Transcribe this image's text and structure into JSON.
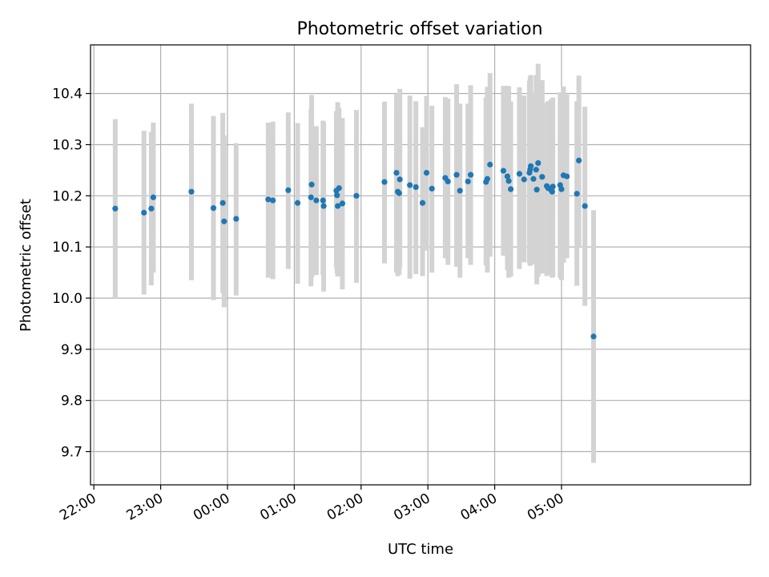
{
  "chart_data": {
    "type": "scatter",
    "title": "Photometric offset variation",
    "xlabel": "UTC time",
    "ylabel": "Photometric offset",
    "xlim_hours": [
      -2.05,
      7.83
    ],
    "ylim": [
      9.635,
      10.495
    ],
    "x_ticks": [
      {
        "hour": -2,
        "label": "22:00"
      },
      {
        "hour": -1,
        "label": "23:00"
      },
      {
        "hour": 0,
        "label": "00:00"
      },
      {
        "hour": 1,
        "label": "01:00"
      },
      {
        "hour": 2,
        "label": "02:00"
      },
      {
        "hour": 3,
        "label": "03:00"
      },
      {
        "hour": 4,
        "label": "04:00"
      },
      {
        "hour": 5,
        "label": "05:00"
      }
    ],
    "y_ticks": [
      9.7,
      9.8,
      9.9,
      10.0,
      10.1,
      10.2,
      10.3,
      10.4
    ],
    "grid": true,
    "colors": {
      "point": "#1f77b4",
      "errorbar": "#d3d3d3"
    },
    "series": [
      {
        "hours": [
          -1.68,
          -1.25,
          -1.14,
          -1.11,
          -0.54,
          -0.21,
          -0.07,
          -0.05,
          0.13,
          0.61,
          0.68,
          0.91,
          1.05,
          1.25,
          1.26,
          1.33,
          1.43,
          1.44,
          1.63,
          1.64,
          1.65,
          1.67,
          1.72,
          1.93,
          2.35,
          2.53,
          2.55,
          2.57,
          2.58,
          2.73,
          2.82,
          2.92,
          2.98,
          3.06,
          3.26,
          3.3,
          3.43,
          3.48,
          3.6,
          3.64,
          3.87,
          3.89,
          3.93,
          4.13,
          4.19,
          4.21,
          4.24,
          4.37,
          4.44,
          4.52,
          4.53,
          4.54,
          4.58,
          4.62,
          4.63,
          4.65,
          4.71,
          4.78,
          4.8,
          4.84,
          4.86,
          4.87,
          4.98,
          5.0,
          5.03,
          5.08,
          5.23,
          5.26,
          5.35,
          5.48
        ],
        "values": [
          10.175,
          10.167,
          10.175,
          10.197,
          10.208,
          10.176,
          10.186,
          10.15,
          10.155,
          10.193,
          10.191,
          10.211,
          10.186,
          10.197,
          10.222,
          10.191,
          10.191,
          10.18,
          10.21,
          10.201,
          10.18,
          10.215,
          10.185,
          10.2,
          10.227,
          10.245,
          10.208,
          10.205,
          10.232,
          10.221,
          10.217,
          10.186,
          10.245,
          10.214,
          10.235,
          10.228,
          10.241,
          10.21,
          10.228,
          10.241,
          10.227,
          10.233,
          10.261,
          10.249,
          10.238,
          10.229,
          10.213,
          10.243,
          10.232,
          10.245,
          10.251,
          10.258,
          10.233,
          10.251,
          10.212,
          10.264,
          10.237,
          10.219,
          10.215,
          10.212,
          10.208,
          10.218,
          10.221,
          10.213,
          10.24,
          10.238,
          10.204,
          10.269,
          10.18,
          9.925
        ],
        "err_low": [
          10.0,
          10.007,
          10.025,
          10.05,
          10.035,
          9.996,
          10.01,
          9.982,
          10.005,
          10.04,
          10.037,
          10.057,
          10.028,
          10.023,
          10.04,
          10.045,
          10.045,
          10.013,
          10.06,
          10.048,
          10.042,
          10.052,
          10.017,
          10.03,
          10.068,
          10.05,
          10.043,
          10.046,
          10.06,
          10.038,
          10.047,
          10.043,
          10.093,
          10.05,
          10.078,
          10.065,
          10.061,
          10.04,
          10.078,
          10.065,
          10.064,
          10.05,
          10.081,
          10.083,
          10.055,
          10.04,
          10.042,
          10.057,
          10.07,
          10.068,
          10.063,
          10.075,
          10.066,
          10.07,
          10.027,
          10.042,
          10.048,
          10.043,
          10.049,
          10.046,
          10.04,
          10.042,
          10.04,
          10.035,
          10.069,
          10.078,
          10.024,
          10.1,
          9.985,
          9.678
        ],
        "err_high": [
          10.35,
          10.327,
          10.325,
          10.343,
          10.38,
          10.356,
          10.362,
          10.318,
          10.303,
          10.343,
          10.345,
          10.363,
          10.342,
          10.37,
          10.397,
          10.336,
          10.347,
          10.344,
          10.365,
          10.366,
          10.383,
          10.372,
          10.352,
          10.368,
          10.384,
          10.4,
          10.37,
          10.373,
          10.409,
          10.396,
          10.385,
          10.334,
          10.395,
          10.376,
          10.393,
          10.39,
          10.418,
          10.38,
          10.38,
          10.416,
          10.392,
          10.413,
          10.44,
          10.415,
          10.415,
          10.414,
          10.384,
          10.412,
          10.396,
          10.425,
          10.433,
          10.436,
          10.402,
          10.436,
          10.397,
          10.458,
          10.426,
          10.382,
          10.385,
          10.388,
          10.373,
          10.392,
          10.402,
          10.384,
          10.414,
          10.398,
          10.385,
          10.435,
          10.374,
          10.172
        ]
      }
    ]
  }
}
